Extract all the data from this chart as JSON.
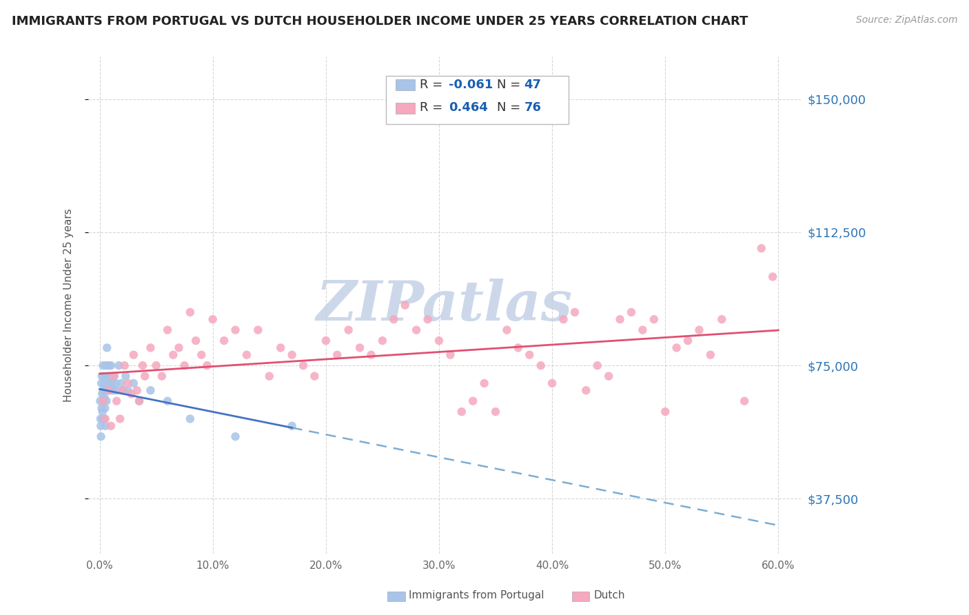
{
  "title": "IMMIGRANTS FROM PORTUGAL VS DUTCH HOUSEHOLDER INCOME UNDER 25 YEARS CORRELATION CHART",
  "source": "Source: ZipAtlas.com",
  "ylabel": "Householder Income Under 25 years",
  "xlabel_ticks": [
    "0.0%",
    "10.0%",
    "20.0%",
    "30.0%",
    "40.0%",
    "50.0%",
    "60.0%"
  ],
  "xlabel_vals": [
    0.0,
    10.0,
    20.0,
    30.0,
    40.0,
    50.0,
    60.0
  ],
  "ytick_labels": [
    "$37,500",
    "$75,000",
    "$112,500",
    "$150,000"
  ],
  "ytick_vals": [
    37500,
    75000,
    112500,
    150000
  ],
  "xlim": [
    -1.0,
    62
  ],
  "ylim": [
    22000,
    162000
  ],
  "blue_scatter_x": [
    0.05,
    0.08,
    0.1,
    0.12,
    0.15,
    0.18,
    0.2,
    0.22,
    0.25,
    0.28,
    0.3,
    0.32,
    0.35,
    0.38,
    0.4,
    0.42,
    0.45,
    0.48,
    0.5,
    0.52,
    0.55,
    0.6,
    0.65,
    0.7,
    0.75,
    0.8,
    0.85,
    0.9,
    0.95,
    1.0,
    1.1,
    1.2,
    1.3,
    1.4,
    1.5,
    1.7,
    1.9,
    2.1,
    2.3,
    2.5,
    3.0,
    3.5,
    4.5,
    6.0,
    8.0,
    12.0,
    17.0
  ],
  "blue_scatter_y": [
    65000,
    60000,
    58000,
    55000,
    70000,
    63000,
    72000,
    67000,
    62000,
    60000,
    75000,
    68000,
    65000,
    60000,
    72000,
    66000,
    70000,
    63000,
    68000,
    58000,
    75000,
    65000,
    80000,
    72000,
    68000,
    75000,
    70000,
    72000,
    68000,
    75000,
    70000,
    68000,
    72000,
    70000,
    68000,
    75000,
    70000,
    68000,
    72000,
    68000,
    70000,
    65000,
    68000,
    65000,
    60000,
    55000,
    58000
  ],
  "pink_scatter_x": [
    0.3,
    0.5,
    0.8,
    1.0,
    1.2,
    1.5,
    1.8,
    2.0,
    2.2,
    2.5,
    2.8,
    3.0,
    3.3,
    3.5,
    3.8,
    4.0,
    4.5,
    5.0,
    5.5,
    6.0,
    6.5,
    7.0,
    7.5,
    8.0,
    8.5,
    9.0,
    9.5,
    10.0,
    11.0,
    12.0,
    13.0,
    14.0,
    15.0,
    16.0,
    17.0,
    18.0,
    19.0,
    20.0,
    21.0,
    22.0,
    23.0,
    24.0,
    25.0,
    26.0,
    27.0,
    28.0,
    29.0,
    30.0,
    31.0,
    32.0,
    33.0,
    34.0,
    35.0,
    36.0,
    37.0,
    38.0,
    39.0,
    40.0,
    41.0,
    42.0,
    43.0,
    44.0,
    45.0,
    46.0,
    47.0,
    48.0,
    49.0,
    50.0,
    51.0,
    52.0,
    53.0,
    54.0,
    55.0,
    57.0,
    58.5,
    59.5
  ],
  "pink_scatter_y": [
    65000,
    60000,
    68000,
    58000,
    72000,
    65000,
    60000,
    68000,
    75000,
    70000,
    67000,
    78000,
    68000,
    65000,
    75000,
    72000,
    80000,
    75000,
    72000,
    85000,
    78000,
    80000,
    75000,
    90000,
    82000,
    78000,
    75000,
    88000,
    82000,
    85000,
    78000,
    85000,
    72000,
    80000,
    78000,
    75000,
    72000,
    82000,
    78000,
    85000,
    80000,
    78000,
    82000,
    88000,
    92000,
    85000,
    88000,
    82000,
    78000,
    62000,
    65000,
    70000,
    62000,
    85000,
    80000,
    78000,
    75000,
    70000,
    88000,
    90000,
    68000,
    75000,
    72000,
    88000,
    90000,
    85000,
    88000,
    62000,
    80000,
    82000,
    85000,
    78000,
    88000,
    65000,
    108000,
    100000
  ],
  "blue_color": "#a8c4e8",
  "pink_color": "#f5a8be",
  "blue_trend_color": "#4472c4",
  "pink_trend_color": "#e05070",
  "blue_dash_color": "#7badd4",
  "background_color": "#ffffff",
  "grid_color": "#cccccc",
  "ytick_color": "#2e75b6",
  "title_fontsize": 13,
  "source_fontsize": 10,
  "watermark": "ZIPatlas",
  "watermark_color": "#ccd8ea"
}
